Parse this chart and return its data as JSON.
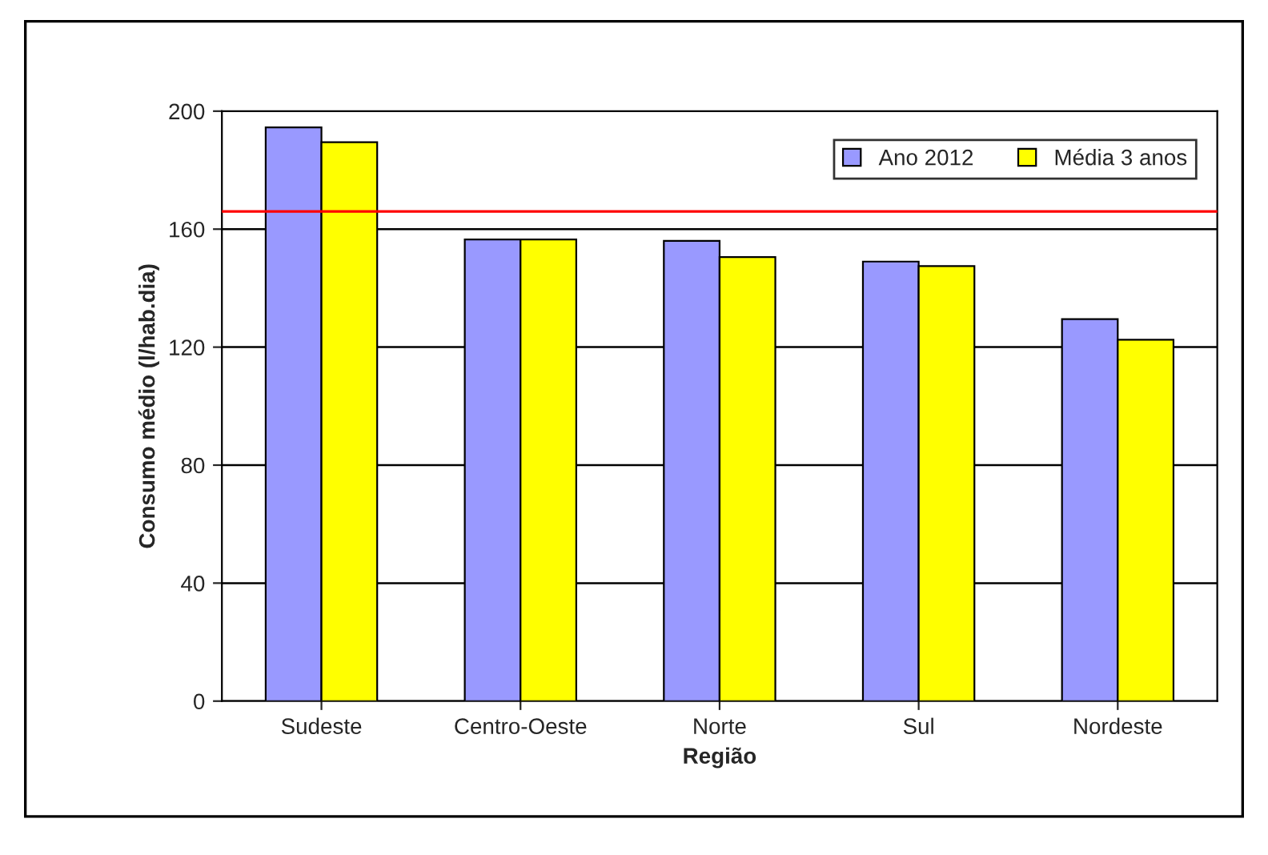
{
  "chart_data": {
    "type": "bar",
    "xlabel": "Região",
    "ylabel": "Consumo médio (l/hab.dia)",
    "categories": [
      "Sudeste",
      "Centro-Oeste",
      "Norte",
      "Sul",
      "Nordeste"
    ],
    "series": [
      {
        "name": "Ano 2012",
        "color": "#9999ff",
        "values": [
          194.5,
          156.5,
          156,
          149,
          129.5
        ]
      },
      {
        "name": "Média 3 anos",
        "color": "#ffff00",
        "values": [
          189.5,
          156.5,
          150.5,
          147.5,
          122.5
        ]
      }
    ],
    "ylim": [
      0,
      200
    ],
    "yticks": [
      0,
      40,
      80,
      120,
      160,
      200
    ],
    "grid": "y",
    "legend": "top right",
    "ref_lines": [
      {
        "axis": "y",
        "value": 166,
        "color": "#ff0000"
      }
    ]
  }
}
